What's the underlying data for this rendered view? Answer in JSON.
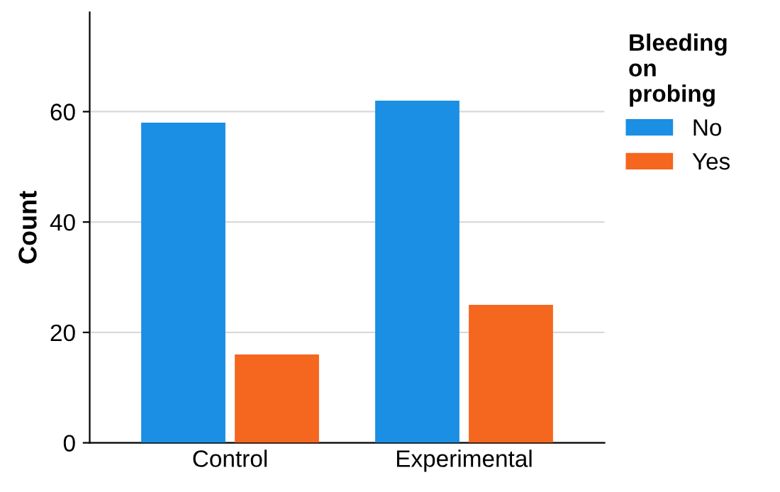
{
  "chart_data": {
    "type": "bar",
    "ylabel": "Count",
    "legend_title": "Bleeding\non\nprobing",
    "categories": [
      "Control",
      "Experimental"
    ],
    "series": [
      {
        "name": "No",
        "color": "#1a8fe3",
        "values": [
          58,
          62
        ]
      },
      {
        "name": "Yes",
        "color": "#f5661f",
        "values": [
          16,
          25
        ]
      }
    ],
    "ylim": [
      0,
      78
    ],
    "yticks": [
      0,
      20,
      40,
      60
    ],
    "grid": "y",
    "legend": "top right"
  }
}
